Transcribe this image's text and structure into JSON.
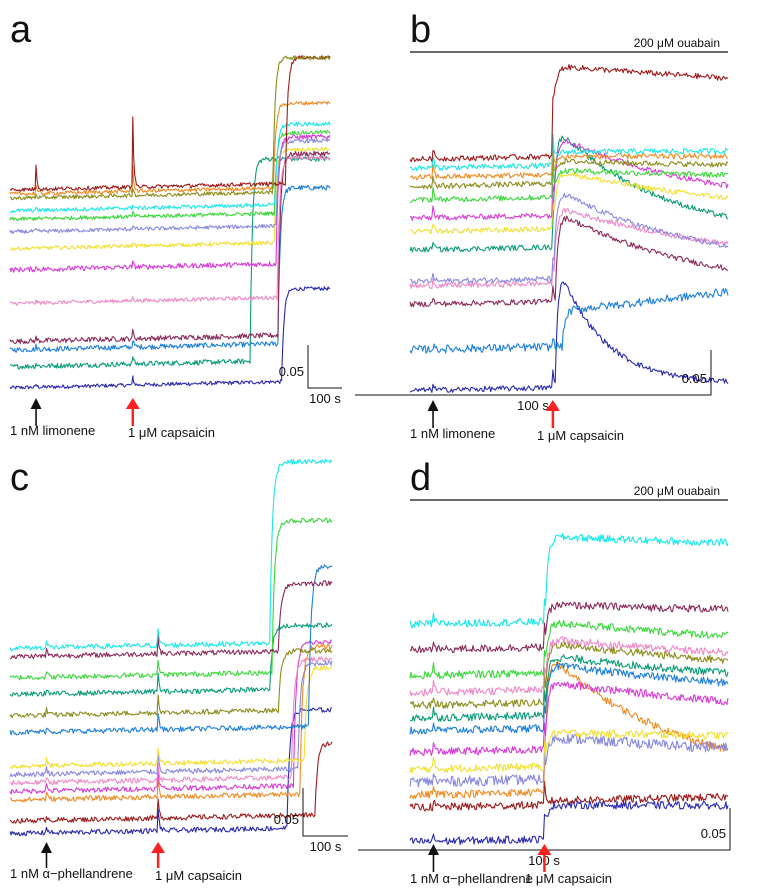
{
  "chart_data": [
    {
      "type": "line",
      "panel_label": "a",
      "treatment_bar": "",
      "scale_bar": {
        "y_value": "0.05",
        "x_value": "100 s"
      },
      "stimuli": [
        {
          "label": "1 nM limonene",
          "arrow_color": "#111111",
          "time_s": 0
        },
        {
          "label": "1 μM capsaicin",
          "arrow_color": "#ff2020",
          "time_s": 260
        }
      ],
      "x_range_s": [
        -70,
        790
      ],
      "y_range": [
        0,
        0.8
      ],
      "traces": [
        {
          "color": "#2a2ab0",
          "base": 0.01,
          "resp": 0.22,
          "onset_s": 660,
          "decay": 5e-05,
          "spike": 0.02,
          "noise": 0.0015
        },
        {
          "color": "#1e7fdc",
          "base": 0.1,
          "resp": 0.37,
          "onset_s": 650,
          "decay": 4e-05,
          "spike": 0.02,
          "noise": 0.002
        },
        {
          "color": "#0c9c78",
          "base": 0.06,
          "resp": 0.48,
          "onset_s": 575,
          "decay": 3e-05,
          "spike": 0.02,
          "noise": 0.002
        },
        {
          "color": "#8a2a5a",
          "base": 0.12,
          "resp": 0.43,
          "onset_s": 650,
          "decay": 2e-05,
          "spike": 0.02,
          "noise": 0.002
        },
        {
          "color": "#ef88c8",
          "base": 0.21,
          "resp": 0.33,
          "onset_s": 648,
          "decay": 3e-05,
          "spike": 0.01,
          "noise": 0.0015
        },
        {
          "color": "#d83ad8",
          "base": 0.29,
          "resp": 0.3,
          "onset_s": 645,
          "decay": 3e-05,
          "spike": 0.01,
          "noise": 0.002
        },
        {
          "color": "#f0e030",
          "base": 0.34,
          "resp": 0.22,
          "onset_s": 640,
          "decay": 2e-05,
          "spike": 0.01,
          "noise": 0.0015
        },
        {
          "color": "#8888e0",
          "base": 0.38,
          "resp": 0.2,
          "onset_s": 645,
          "decay": 2e-05,
          "spike": 0.01,
          "noise": 0.0015
        },
        {
          "color": "#38d838",
          "base": 0.41,
          "resp": 0.19,
          "onset_s": 640,
          "decay": 1e-05,
          "spike": 0.01,
          "noise": 0.0015
        },
        {
          "color": "#18e8e8",
          "base": 0.43,
          "resp": 0.19,
          "onset_s": 642,
          "decay": 1e-05,
          "spike": 0.01,
          "noise": 0.0015
        },
        {
          "color": "#f08a20",
          "base": 0.47,
          "resp": 0.2,
          "onset_s": 638,
          "decay": 1e-05,
          "spike": 0.06,
          "noise": 0.0015
        },
        {
          "color": "#9c1a1a",
          "base": 0.48,
          "resp": 0.3,
          "onset_s": 670,
          "decay": 0.0001,
          "spike": 0.17,
          "noise": 0.0015
        },
        {
          "color": "#8c8c1c",
          "base": 0.46,
          "resp": 0.32,
          "onset_s": 636,
          "decay": 8e-05,
          "spike": 0.02,
          "noise": 0.0015
        }
      ]
    },
    {
      "type": "line",
      "panel_label": "b",
      "treatment_bar": "200 μM ouabain",
      "scale_bar": {
        "y_value": "0.05",
        "x_value": "100 s"
      },
      "stimuli": [
        {
          "label": "1 nM limonene",
          "arrow_color": "#111111",
          "time_s": 0
        },
        {
          "label": "1 μM capsaicin",
          "arrow_color": "#ff2020",
          "time_s": 260
        }
      ],
      "x_range_s": [
        -50,
        640
      ],
      "y_range": [
        0,
        0.75
      ],
      "traces": [
        {
          "color": "#2a2ab0",
          "base": 0.01,
          "resp": 0.29,
          "onset_s": 265,
          "decay": 0.01,
          "spike": 0.04,
          "noise": 0.002
        },
        {
          "color": "#1e7fdc",
          "base": 0.1,
          "resp": 0.08,
          "onset_s": 280,
          "decay": -0.001,
          "spike": 0.02,
          "noise": 0.003
        },
        {
          "color": "#8a2a5a",
          "base": 0.2,
          "resp": 0.2,
          "onset_s": 265,
          "decay": 0.003,
          "spike": 0.04,
          "noise": 0.002
        },
        {
          "color": "#ef88c8",
          "base": 0.24,
          "resp": 0.17,
          "onset_s": 262,
          "decay": 0.002,
          "spike": 0.04,
          "noise": 0.002
        },
        {
          "color": "#8888e0",
          "base": 0.25,
          "resp": 0.2,
          "onset_s": 262,
          "decay": 0.003,
          "spike": 0.05,
          "noise": 0.002
        },
        {
          "color": "#0c9c78",
          "base": 0.32,
          "resp": 0.27,
          "onset_s": 260,
          "decay": 0.004,
          "spike": 0.06,
          "noise": 0.002
        },
        {
          "color": "#f0e030",
          "base": 0.36,
          "resp": 0.13,
          "onset_s": 262,
          "decay": 0.002,
          "spike": 0.06,
          "noise": 0.002
        },
        {
          "color": "#d83ad8",
          "base": 0.39,
          "resp": 0.18,
          "onset_s": 262,
          "decay": 0.003,
          "spike": 0.07,
          "noise": 0.002
        },
        {
          "color": "#38d838",
          "base": 0.43,
          "resp": 0.06,
          "onset_s": 262,
          "decay": 0.001,
          "spike": 0.07,
          "noise": 0.002
        },
        {
          "color": "#8c8c1c",
          "base": 0.46,
          "resp": 0.05,
          "onset_s": 262,
          "decay": 0.001,
          "spike": 0.07,
          "noise": 0.002
        },
        {
          "color": "#f08a20",
          "base": 0.48,
          "resp": 0.04,
          "onset_s": 262,
          "decay": 0.0005,
          "spike": 0.07,
          "noise": 0.002
        },
        {
          "color": "#18e8e8",
          "base": 0.5,
          "resp": 0.03,
          "onset_s": 262,
          "decay": 0.0005,
          "spike": 0.07,
          "noise": 0.002
        },
        {
          "color": "#9c1a1a",
          "base": 0.52,
          "resp": 0.2,
          "onset_s": 258,
          "decay": 0.0005,
          "spike": 0.07,
          "noise": 0.002
        }
      ]
    },
    {
      "type": "line",
      "panel_label": "c",
      "treatment_bar": "",
      "scale_bar": {
        "y_value": "0.05",
        "x_value": "100 s"
      },
      "stimuli": [
        {
          "label": "1 nM α−phellandrene",
          "arrow_color": "#111111",
          "time_s": 0
        },
        {
          "label": "1 μM capsaicin",
          "arrow_color": "#ff2020",
          "time_s": 260
        }
      ],
      "x_range_s": [
        -85,
        665
      ],
      "y_range": [
        0,
        0.8
      ],
      "traces": [
        {
          "color": "#2a2ab0",
          "base": 0.02,
          "resp": 0.28,
          "onset_s": 560,
          "decay": 5e-05,
          "spike": 0.05,
          "noise": 0.002
        },
        {
          "color": "#9c1a1a",
          "base": 0.05,
          "resp": 0.17,
          "onset_s": 625,
          "decay": 3e-05,
          "spike": 0.04,
          "noise": 0.002
        },
        {
          "color": "#f08a20",
          "base": 0.1,
          "resp": 0.35,
          "onset_s": 590,
          "decay": 5e-05,
          "spike": 0.04,
          "noise": 0.002
        },
        {
          "color": "#d83ad8",
          "base": 0.12,
          "resp": 0.34,
          "onset_s": 575,
          "decay": 3e-05,
          "spike": 0.04,
          "noise": 0.002
        },
        {
          "color": "#ef88c8",
          "base": 0.14,
          "resp": 0.28,
          "onset_s": 570,
          "decay": 2e-05,
          "spike": 0.04,
          "noise": 0.002
        },
        {
          "color": "#8888e0",
          "base": 0.16,
          "resp": 0.25,
          "onset_s": 585,
          "decay": 2e-05,
          "spike": 0.04,
          "noise": 0.002
        },
        {
          "color": "#f0e030",
          "base": 0.18,
          "resp": 0.22,
          "onset_s": 600,
          "decay": 2e-05,
          "spike": 0.04,
          "noise": 0.002
        },
        {
          "color": "#1e7fdc",
          "base": 0.26,
          "resp": 0.38,
          "onset_s": 610,
          "decay": 2e-05,
          "spike": 0.04,
          "noise": 0.002
        },
        {
          "color": "#8c8c1c",
          "base": 0.3,
          "resp": 0.14,
          "onset_s": 540,
          "decay": 1e-05,
          "spike": 0.04,
          "noise": 0.002
        },
        {
          "color": "#0c9c78",
          "base": 0.35,
          "resp": 0.15,
          "onset_s": 520,
          "decay": 1e-05,
          "spike": 0.04,
          "noise": 0.002
        },
        {
          "color": "#38d838",
          "base": 0.39,
          "resp": 0.36,
          "onset_s": 525,
          "decay": 2e-05,
          "spike": 0.04,
          "noise": 0.002
        },
        {
          "color": "#8a2a5a",
          "base": 0.44,
          "resp": 0.16,
          "onset_s": 540,
          "decay": 1e-05,
          "spike": 0.04,
          "noise": 0.002
        },
        {
          "color": "#18e8e8",
          "base": 0.46,
          "resp": 0.43,
          "onset_s": 520,
          "decay": 3e-05,
          "spike": 0.04,
          "noise": 0.002
        }
      ]
    },
    {
      "type": "line",
      "panel_label": "d",
      "treatment_bar": "200 μM ouabain",
      "scale_bar": {
        "y_value": "0.05",
        "x_value": "100 s"
      },
      "stimuli": [
        {
          "label": "1 nM α−phellandrene",
          "arrow_color": "#111111",
          "time_s": 0
        },
        {
          "label": "1 μM capsaicin",
          "arrow_color": "#ff2020",
          "time_s": 260
        }
      ],
      "x_range_s": [
        -55,
        690
      ],
      "y_range": [
        0,
        0.8
      ],
      "traces": [
        {
          "color": "#2a2ab0",
          "base": 0.01,
          "resp": 0.08,
          "onset_s": 260,
          "decay": 0.0003,
          "spike": 0.05,
          "noise": 0.003
        },
        {
          "color": "#9c1a1a",
          "base": 0.09,
          "resp": 0.01,
          "onset_s": 262,
          "decay": 0.0,
          "spike": 0.05,
          "noise": 0.003
        },
        {
          "color": "#f08a20",
          "base": 0.12,
          "resp": 0.33,
          "onset_s": 260,
          "decay": 0.003,
          "spike": 0.06,
          "noise": 0.003
        },
        {
          "color": "#8888e0",
          "base": 0.15,
          "resp": 0.1,
          "onset_s": 262,
          "decay": 0.001,
          "spike": 0.06,
          "noise": 0.004
        },
        {
          "color": "#f0e030",
          "base": 0.18,
          "resp": 0.08,
          "onset_s": 262,
          "decay": 0.0005,
          "spike": 0.06,
          "noise": 0.003
        },
        {
          "color": "#d83ad8",
          "base": 0.22,
          "resp": 0.16,
          "onset_s": 262,
          "decay": 0.001,
          "spike": 0.06,
          "noise": 0.003
        },
        {
          "color": "#1e7fdc",
          "base": 0.27,
          "resp": 0.15,
          "onset_s": 262,
          "decay": 0.001,
          "spike": 0.06,
          "noise": 0.003
        },
        {
          "color": "#0c9c78",
          "base": 0.3,
          "resp": 0.14,
          "onset_s": 262,
          "decay": 0.001,
          "spike": 0.06,
          "noise": 0.003
        },
        {
          "color": "#8c8c1c",
          "base": 0.33,
          "resp": 0.14,
          "onset_s": 262,
          "decay": 0.001,
          "spike": 0.06,
          "noise": 0.003
        },
        {
          "color": "#ef88c8",
          "base": 0.36,
          "resp": 0.12,
          "onset_s": 262,
          "decay": 0.001,
          "spike": 0.06,
          "noise": 0.003
        },
        {
          "color": "#38d838",
          "base": 0.4,
          "resp": 0.12,
          "onset_s": 262,
          "decay": 0.001,
          "spike": 0.06,
          "noise": 0.003
        },
        {
          "color": "#8a2a5a",
          "base": 0.46,
          "resp": 0.1,
          "onset_s": 262,
          "decay": 0.0005,
          "spike": 0.06,
          "noise": 0.003
        },
        {
          "color": "#18e8e8",
          "base": 0.52,
          "resp": 0.2,
          "onset_s": 262,
          "decay": 0.0003,
          "spike": 0.06,
          "noise": 0.003
        }
      ]
    }
  ]
}
